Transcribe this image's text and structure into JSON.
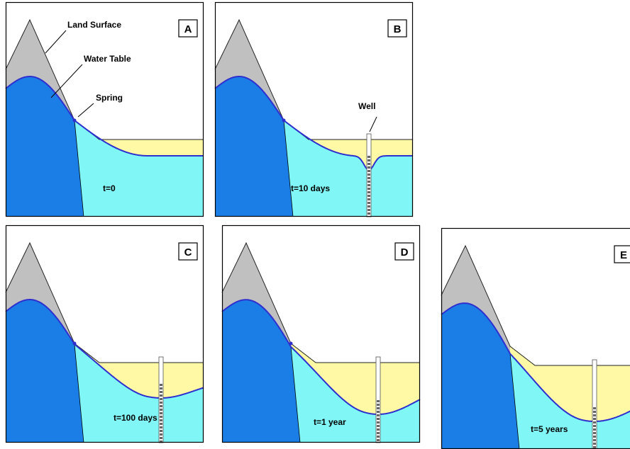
{
  "annotations": {
    "land_surface": "Land Surface",
    "water_table": "Water Table",
    "spring": "Spring",
    "well": "Well"
  },
  "panels": [
    {
      "label": "A",
      "time": "t=0"
    },
    {
      "label": "B",
      "time": "t=10  days"
    },
    {
      "label": "C",
      "time": "t=100 days"
    },
    {
      "label": "D",
      "time": "t=1 year"
    },
    {
      "label": "E",
      "time": "t=5 years"
    }
  ]
}
